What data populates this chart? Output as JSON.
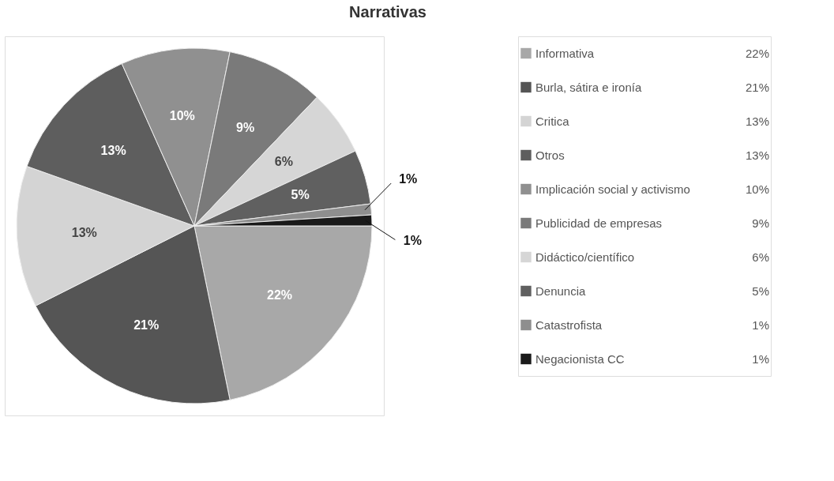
{
  "chart_data": {
    "type": "pie",
    "title": "Narrativas",
    "categories": [
      "Informativa",
      "Burla, sátira e ironía",
      "Critica",
      "Otros",
      "Implicación social y activismo",
      "Publicidad de empresas",
      "Didáctico/científico",
      "Denuncia",
      "Catastrofista",
      "Negacionista CC"
    ],
    "values": [
      22,
      21,
      13,
      13,
      10,
      9,
      6,
      5,
      1,
      1
    ],
    "value_labels": [
      "22%",
      "21%",
      "13%",
      "13%",
      "10%",
      "9%",
      "6%",
      "5%",
      "1%",
      "1%"
    ],
    "colors": [
      "#a8a8a8",
      "#555555",
      "#d4d4d4",
      "#5e5e5e",
      "#909090",
      "#7a7a7a",
      "#d6d6d6",
      "#606060",
      "#8e8e8e",
      "#1a1a1a"
    ],
    "legend": "right"
  }
}
